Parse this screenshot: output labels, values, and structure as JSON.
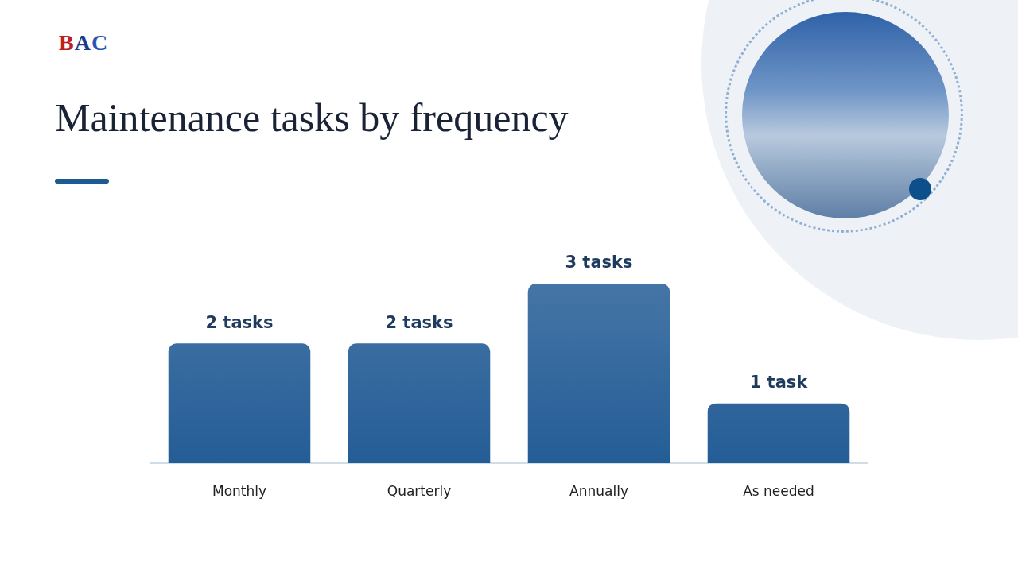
{
  "logo": "BAC",
  "chart_data": {
    "type": "bar",
    "title": "Maintenance tasks by frequency",
    "categories": [
      "Monthly",
      "Quarterly",
      "Annually",
      "As needed"
    ],
    "values": [
      2,
      2,
      3,
      1
    ],
    "value_labels": [
      "2 tasks",
      "2 tasks",
      "3 tasks",
      "1 task"
    ],
    "data_labels": true,
    "color": "#245d96",
    "ylim": [
      0,
      3
    ],
    "grid": false,
    "tick_labels": "x"
  }
}
